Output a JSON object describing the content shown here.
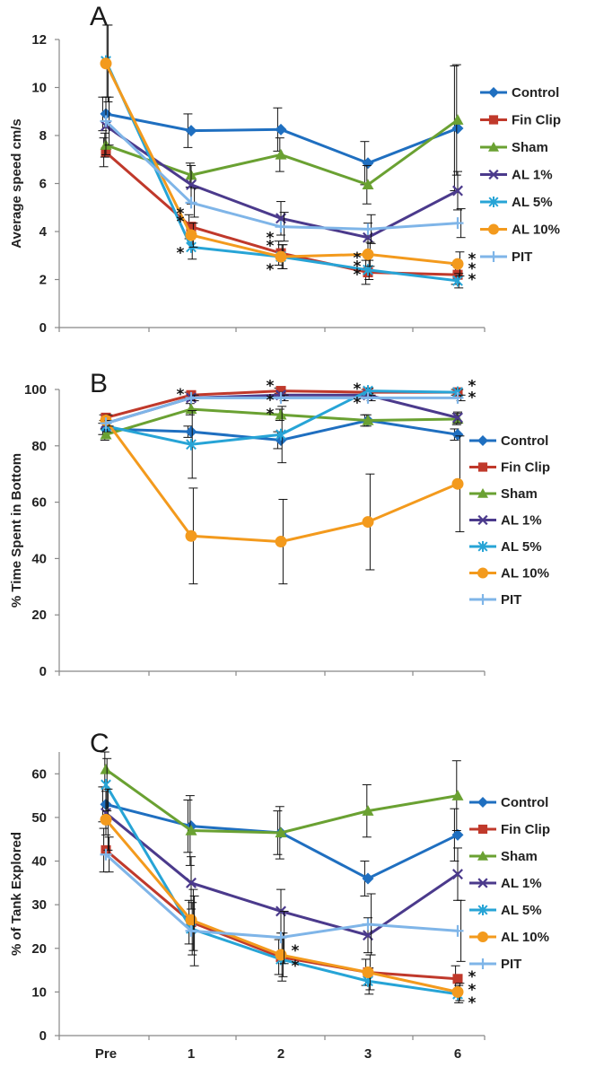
{
  "figure": {
    "background": "#ffffff"
  },
  "series_styles": [
    {
      "name": "Control",
      "color": "#1f6fc0",
      "marker": "diamond"
    },
    {
      "name": "Fin Clip",
      "color": "#c0392b",
      "marker": "square"
    },
    {
      "name": "Sham",
      "color": "#6aa132",
      "marker": "triangle"
    },
    {
      "name": "AL 1%",
      "color": "#4b3a8c",
      "marker": "x"
    },
    {
      "name": "AL 5%",
      "color": "#27a4d6",
      "marker": "asterisk"
    },
    {
      "name": "AL 10%",
      "color": "#f39a1d",
      "marker": "circle"
    },
    {
      "name": "PIT",
      "color": "#7fb5e8",
      "marker": "plus"
    }
  ],
  "chart_data": [
    {
      "panel": "A",
      "type": "line",
      "ylabel": "Average speed cm/s",
      "ylim": [
        0,
        12
      ],
      "yticks": [
        0,
        2,
        4,
        6,
        8,
        10,
        12
      ],
      "categories": [
        "Pre",
        "1",
        "2",
        "3",
        "6"
      ],
      "show_xtick_labels": false,
      "legend": "right",
      "series": [
        {
          "name": "Control",
          "values": [
            8.9,
            8.2,
            8.25,
            6.85,
            8.3
          ],
          "errors": [
            0.7,
            0.7,
            0.9,
            0.9,
            2.6
          ]
        },
        {
          "name": "Fin Clip",
          "values": [
            7.3,
            4.2,
            3.1,
            2.3,
            2.2
          ],
          "errors": [
            0.6,
            0.5,
            0.5,
            0.5,
            0.4
          ]
        },
        {
          "name": "Sham",
          "values": [
            7.6,
            6.35,
            7.2,
            5.95,
            8.65
          ],
          "errors": [
            0.5,
            0.5,
            0.7,
            0.8,
            2.3
          ]
        },
        {
          "name": "AL 1%",
          "values": [
            8.4,
            5.95,
            4.55,
            3.75,
            5.7
          ],
          "errors": [
            1.2,
            0.8,
            0.7,
            0.6,
            0.8
          ]
        },
        {
          "name": "AL 5%",
          "values": [
            11.1,
            3.35,
            2.95,
            2.4,
            1.95
          ],
          "errors": [
            1.5,
            0.5,
            0.5,
            0.4,
            0.3
          ]
        },
        {
          "name": "AL 10%",
          "values": [
            11.0,
            3.85,
            2.95,
            3.05,
            2.65
          ],
          "errors": [
            1.6,
            0.5,
            0.5,
            0.5,
            0.5
          ]
        },
        {
          "name": "PIT",
          "values": [
            8.6,
            5.2,
            4.2,
            4.1,
            4.35
          ],
          "errors": [
            1.0,
            0.6,
            0.6,
            0.6,
            0.6
          ]
        }
      ],
      "annotations": [
        {
          "text": "**",
          "category": "1",
          "value": 4.5,
          "orient": "vertical"
        },
        {
          "text": "*",
          "category": "1",
          "value": 3.2
        },
        {
          "text": "**",
          "category": "2",
          "value": 3.5,
          "orient": "vertical"
        },
        {
          "text": "*",
          "category": "2",
          "value": 2.5
        },
        {
          "text": "*",
          "category": "3",
          "value": 3.0
        },
        {
          "text": "**",
          "category": "3",
          "value": 2.3,
          "orient": "vertical"
        },
        {
          "text": "*",
          "category": "6",
          "value": 2.95,
          "side": "right"
        },
        {
          "text": "*",
          "category": "6",
          "value": 2.55,
          "side": "right"
        },
        {
          "text": "*",
          "category": "6",
          "value": 2.1,
          "side": "right"
        }
      ]
    },
    {
      "panel": "B",
      "type": "line",
      "ylabel": "% Time Spent in Bottom",
      "ylim": [
        0,
        100
      ],
      "yticks": [
        0,
        20,
        40,
        60,
        80,
        100
      ],
      "categories": [
        "Pre",
        "1",
        "2",
        "3",
        "6"
      ],
      "show_xtick_labels": false,
      "legend": "right",
      "series": [
        {
          "name": "Control",
          "values": [
            86,
            85,
            82,
            89,
            84
          ],
          "errors": [
            2,
            2,
            3,
            2,
            2
          ]
        },
        {
          "name": "Fin Clip",
          "values": [
            90,
            98,
            99.5,
            99,
            99
          ],
          "errors": [
            1,
            1,
            1,
            1,
            1
          ]
        },
        {
          "name": "Sham",
          "values": [
            84,
            93,
            91,
            89,
            89.5
          ],
          "errors": [
            2,
            2,
            2,
            2,
            2
          ]
        },
        {
          "name": "AL 1%",
          "values": [
            88,
            97,
            98,
            98,
            90
          ],
          "errors": [
            2,
            1,
            1,
            1,
            2
          ]
        },
        {
          "name": "AL 5%",
          "values": [
            87,
            80.5,
            84,
            99.5,
            99
          ],
          "errors": [
            2,
            12,
            10,
            1,
            1
          ]
        },
        {
          "name": "AL 10%",
          "values": [
            89,
            48,
            46,
            53,
            66.5
          ],
          "errors": [
            2,
            17,
            15,
            17,
            17
          ]
        },
        {
          "name": "PIT",
          "values": [
            88,
            97,
            97,
            97,
            97
          ],
          "errors": [
            1,
            1,
            1,
            1,
            1
          ]
        }
      ],
      "annotations": [
        {
          "text": "*",
          "category": "1",
          "value": 99
        },
        {
          "text": "*",
          "category": "2",
          "value": 102
        },
        {
          "text": "*",
          "category": "2",
          "value": 97
        },
        {
          "text": "*",
          "category": "2",
          "value": 92
        },
        {
          "text": "*",
          "category": "3",
          "value": 101
        },
        {
          "text": "*",
          "category": "3",
          "value": 96
        },
        {
          "text": "*",
          "category": "6",
          "value": 102,
          "side": "right"
        },
        {
          "text": "*",
          "category": "6",
          "value": 98,
          "side": "right"
        }
      ]
    },
    {
      "panel": "C",
      "type": "line",
      "ylabel": "% of Tank Explored",
      "ylim": [
        0,
        65
      ],
      "yticks": [
        0,
        10,
        20,
        30,
        40,
        50,
        60
      ],
      "categories": [
        "Pre",
        "1",
        "2",
        "3",
        "6"
      ],
      "show_xtick_labels": true,
      "legend": "right",
      "series": [
        {
          "name": "Control",
          "values": [
            53,
            48,
            46.5,
            36,
            46
          ],
          "errors": [
            4,
            6,
            5,
            4,
            6
          ]
        },
        {
          "name": "Fin Clip",
          "values": [
            42.5,
            26,
            18,
            14.5,
            13
          ],
          "errors": [
            5,
            5,
            4,
            3,
            3
          ]
        },
        {
          "name": "Sham",
          "values": [
            61,
            47,
            46.5,
            51.5,
            55
          ],
          "errors": [
            4,
            8,
            6,
            6,
            8
          ]
        },
        {
          "name": "AL 1%",
          "values": [
            51,
            35,
            28.5,
            23,
            37
          ],
          "errors": [
            5,
            6,
            5,
            4,
            6
          ]
        },
        {
          "name": "AL 5%",
          "values": [
            57.5,
            24.5,
            17.5,
            12.5,
            9.5
          ],
          "errors": [
            6,
            6,
            5,
            3,
            2
          ]
        },
        {
          "name": "AL 10%",
          "values": [
            49.5,
            26.5,
            18.5,
            14.5,
            10
          ],
          "errors": [
            7,
            7,
            5,
            4,
            2
          ]
        },
        {
          "name": "PIT",
          "values": [
            41.5,
            24,
            22.5,
            25.5,
            24
          ],
          "errors": [
            4,
            8,
            6,
            7,
            7
          ]
        }
      ],
      "annotations": [
        {
          "text": "*",
          "category": "2",
          "value": 20,
          "side": "right"
        },
        {
          "text": "*",
          "category": "2",
          "value": 16.5,
          "side": "right"
        },
        {
          "text": "*",
          "category": "6",
          "value": 14,
          "side": "right"
        },
        {
          "text": "*",
          "category": "6",
          "value": 11,
          "side": "right"
        },
        {
          "text": "*",
          "category": "6",
          "value": 8,
          "side": "right"
        }
      ]
    }
  ]
}
